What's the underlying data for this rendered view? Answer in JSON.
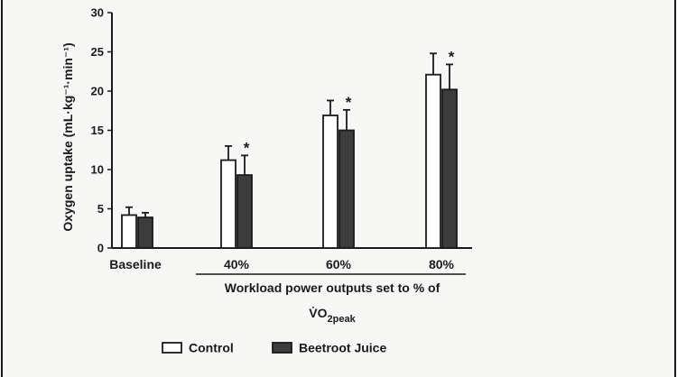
{
  "chart_data": {
    "type": "bar",
    "categories": [
      "Baseline",
      "40%",
      "60%",
      "80%"
    ],
    "series": [
      {
        "name": "Control",
        "color": "#ffffff",
        "values": [
          4.2,
          11.2,
          16.9,
          22.1
        ],
        "errors": [
          1.0,
          1.8,
          1.9,
          2.7
        ]
      },
      {
        "name": "Beetroot Juice",
        "color": "#3c3c3c",
        "values": [
          3.9,
          9.3,
          15.0,
          20.2
        ],
        "errors": [
          0.6,
          2.5,
          2.6,
          3.2
        ]
      }
    ],
    "significance": [
      "",
      "*",
      "*",
      "*"
    ],
    "significance_series": "Beetroot Juice",
    "ylabel": "Oxygen uptake (mL·kg⁻¹·min⁻¹)",
    "xlabel_line1": "Workload power outputs set to % of",
    "xlabel_line2_base": "V̇O",
    "xlabel_line2_sub": "2peak",
    "ylim": [
      0,
      30
    ],
    "yticks": [
      0,
      5,
      10,
      15,
      20,
      25,
      30
    ],
    "grid": false,
    "legend_position": "bottom-center"
  }
}
